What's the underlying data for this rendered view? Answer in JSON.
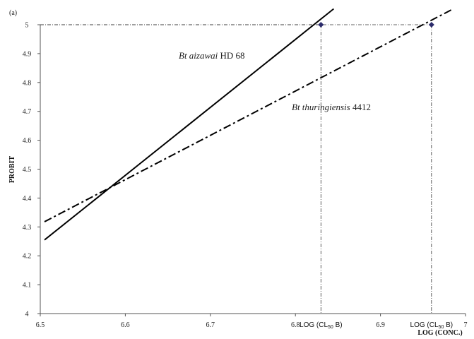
{
  "panel_label": "(a)",
  "chart_data": {
    "type": "line",
    "xlabel": "LOG (CONC.)",
    "ylabel": "PROBIT",
    "xlim": [
      6.5,
      7.0
    ],
    "ylim": [
      4.0,
      5.0
    ],
    "xticks": [
      "6.5",
      "6.6",
      "6.7",
      "6.8",
      "6.9",
      "7"
    ],
    "yticks": [
      "4",
      "4.1",
      "4.2",
      "4.3",
      "4.4",
      "4.5",
      "4.6",
      "4.7",
      "4.8",
      "4.9",
      "5"
    ],
    "grid": false,
    "series": [
      {
        "name_italic": "Bt aizawai",
        "name_rest": " HD 68",
        "style": "solid",
        "color": "#000000",
        "x": [
          6.505,
          6.845
        ],
        "y": [
          4.255,
          5.055
        ]
      },
      {
        "name_italic": "Bt thuringiensis",
        "name_rest": " 4412",
        "style": "dash-dot",
        "color": "#000000",
        "x": [
          6.505,
          6.985
        ],
        "y": [
          4.318,
          5.054
        ]
      }
    ],
    "markers": [
      {
        "x": 6.83,
        "y": 5.0,
        "label_main": "LOG (CL",
        "label_sub": "50",
        "label_end": " B)"
      },
      {
        "x": 6.96,
        "y": 5.0,
        "label_main": "LOG (CL",
        "label_sub": "50",
        "label_end": " B)"
      }
    ],
    "marker_color": "#2b2b6b"
  }
}
